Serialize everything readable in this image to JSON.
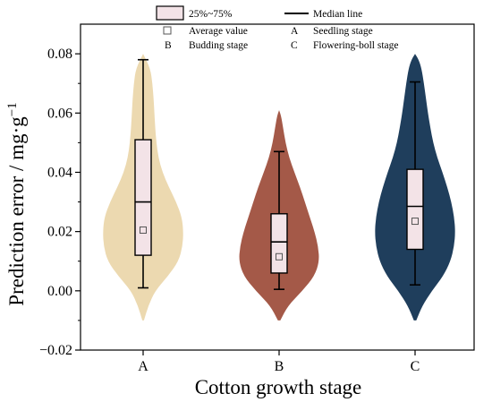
{
  "chart_data": {
    "type": "violin",
    "ylabel": "Prediction error / mg·g",
    "ylabel_superscript": "−1",
    "xlabel": "Cotton growth stage",
    "categories": [
      "A",
      "B",
      "C"
    ],
    "ylim": [
      -0.02,
      0.09
    ],
    "y_ticks": [
      -0.02,
      0.0,
      0.02,
      0.04,
      0.06,
      0.08
    ],
    "y_tick_labels": [
      "−0.02",
      "0.00",
      "0.02",
      "0.04",
      "0.06",
      "0.08"
    ],
    "series": [
      {
        "category": "A",
        "color": "#ecd9b0",
        "q1": 0.012,
        "median": 0.03,
        "q3": 0.051,
        "mean": 0.0205,
        "whisker_low": 0.001,
        "whisker_high": 0.078,
        "violin_min": -0.01,
        "violin_max": 0.08,
        "density_profile": [
          [
            -0.01,
            0.02
          ],
          [
            -0.005,
            0.13
          ],
          [
            0.0,
            0.3
          ],
          [
            0.005,
            0.62
          ],
          [
            0.01,
            0.88
          ],
          [
            0.015,
            0.98
          ],
          [
            0.02,
            1.0
          ],
          [
            0.025,
            0.96
          ],
          [
            0.03,
            0.82
          ],
          [
            0.035,
            0.64
          ],
          [
            0.04,
            0.48
          ],
          [
            0.045,
            0.38
          ],
          [
            0.05,
            0.33
          ],
          [
            0.055,
            0.3
          ],
          [
            0.06,
            0.28
          ],
          [
            0.065,
            0.26
          ],
          [
            0.07,
            0.23
          ],
          [
            0.075,
            0.18
          ],
          [
            0.08,
            0.0
          ]
        ]
      },
      {
        "category": "B",
        "color": "#a45948",
        "q1": 0.006,
        "median": 0.0165,
        "q3": 0.026,
        "mean": 0.0115,
        "whisker_low": 0.0005,
        "whisker_high": 0.047,
        "violin_min": -0.01,
        "violin_max": 0.061,
        "density_profile": [
          [
            -0.01,
            0.03
          ],
          [
            -0.005,
            0.22
          ],
          [
            0.0,
            0.58
          ],
          [
            0.005,
            0.88
          ],
          [
            0.01,
            1.0
          ],
          [
            0.015,
            0.97
          ],
          [
            0.02,
            0.88
          ],
          [
            0.025,
            0.76
          ],
          [
            0.03,
            0.64
          ],
          [
            0.035,
            0.52
          ],
          [
            0.04,
            0.38
          ],
          [
            0.045,
            0.25
          ],
          [
            0.05,
            0.16
          ],
          [
            0.055,
            0.1
          ],
          [
            0.059,
            0.05
          ],
          [
            0.061,
            0.0
          ]
        ]
      },
      {
        "category": "C",
        "color": "#1f3e5c",
        "q1": 0.014,
        "median": 0.0285,
        "q3": 0.041,
        "mean": 0.0235,
        "whisker_low": 0.002,
        "whisker_high": 0.0705,
        "violin_min": -0.01,
        "violin_max": 0.08,
        "density_profile": [
          [
            -0.01,
            0.03
          ],
          [
            -0.005,
            0.18
          ],
          [
            0.0,
            0.42
          ],
          [
            0.005,
            0.7
          ],
          [
            0.01,
            0.88
          ],
          [
            0.015,
            0.97
          ],
          [
            0.02,
            1.0
          ],
          [
            0.025,
            0.97
          ],
          [
            0.03,
            0.9
          ],
          [
            0.035,
            0.8
          ],
          [
            0.04,
            0.68
          ],
          [
            0.045,
            0.55
          ],
          [
            0.05,
            0.45
          ],
          [
            0.055,
            0.38
          ],
          [
            0.06,
            0.32
          ],
          [
            0.065,
            0.27
          ],
          [
            0.07,
            0.22
          ],
          [
            0.075,
            0.16
          ],
          [
            0.078,
            0.09
          ],
          [
            0.08,
            0.0
          ]
        ]
      }
    ],
    "box_fill": "#f3e3e7",
    "legend": {
      "box": "25%~75%",
      "median": "Median line",
      "mean": "Average value",
      "a_key": "A",
      "a_text": "Seedling stage",
      "b_key": "B",
      "b_text": "Budding stage",
      "c_key": "C",
      "c_text": "Flowering-boll stage"
    }
  }
}
